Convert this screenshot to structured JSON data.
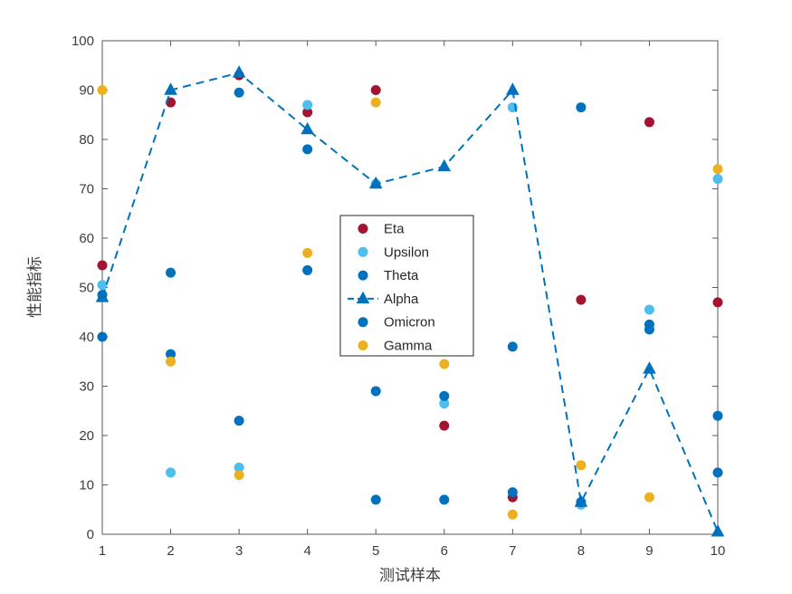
{
  "chart_data": {
    "type": "scatter",
    "title": "",
    "xlabel": "测试样本",
    "ylabel": "性能指标",
    "xlim": [
      1,
      10
    ],
    "ylim": [
      0,
      100
    ],
    "xticks": [
      1,
      2,
      3,
      4,
      5,
      6,
      7,
      8,
      9,
      10
    ],
    "yticks": [
      0,
      10,
      20,
      30,
      40,
      50,
      60,
      70,
      80,
      90,
      100
    ],
    "grid": false,
    "legend": {
      "position": "center",
      "entries": [
        "Eta",
        "Upsilon",
        "Theta",
        "Alpha",
        "Omicron",
        "Gamma"
      ]
    },
    "x": [
      1,
      2,
      3,
      4,
      5,
      6,
      7,
      8,
      9,
      10
    ],
    "series": [
      {
        "name": "Eta",
        "type": "scatter",
        "marker": "circle",
        "color": "#A2142F",
        "values": [
          54.5,
          87.5,
          93,
          85.5,
          90,
          22,
          7.5,
          47.5,
          83.5,
          47
        ]
      },
      {
        "name": "Upsilon",
        "type": "scatter",
        "marker": "circle",
        "color": "#4DBEEE",
        "values": [
          50.5,
          12.5,
          13.5,
          87,
          71,
          26.5,
          86.5,
          6,
          45.5,
          72
        ]
      },
      {
        "name": "Theta",
        "type": "scatter",
        "marker": "circle",
        "color": "#0072BD",
        "values": [
          48.5,
          53,
          89.5,
          78,
          29,
          28,
          38,
          86.5,
          41.5,
          24
        ]
      },
      {
        "name": "Alpha",
        "type": "line",
        "marker": "triangle",
        "color": "#0072BD",
        "dashed": true,
        "values": [
          48,
          90,
          93.5,
          82,
          71,
          74.5,
          90,
          6.5,
          33.5,
          0.5
        ]
      },
      {
        "name": "Omicron",
        "type": "scatter",
        "marker": "circle",
        "color": "#0072BD",
        "values": [
          40,
          36.5,
          23,
          53.5,
          7,
          7,
          8.5,
          6.5,
          42.5,
          12.5
        ]
      },
      {
        "name": "Gamma",
        "type": "scatter",
        "marker": "circle",
        "color": "#EDB120",
        "values": [
          90,
          35,
          12,
          57,
          87.5,
          34.5,
          4,
          14,
          7.5,
          74
        ]
      }
    ],
    "axis_color": "#5a5a5a"
  }
}
